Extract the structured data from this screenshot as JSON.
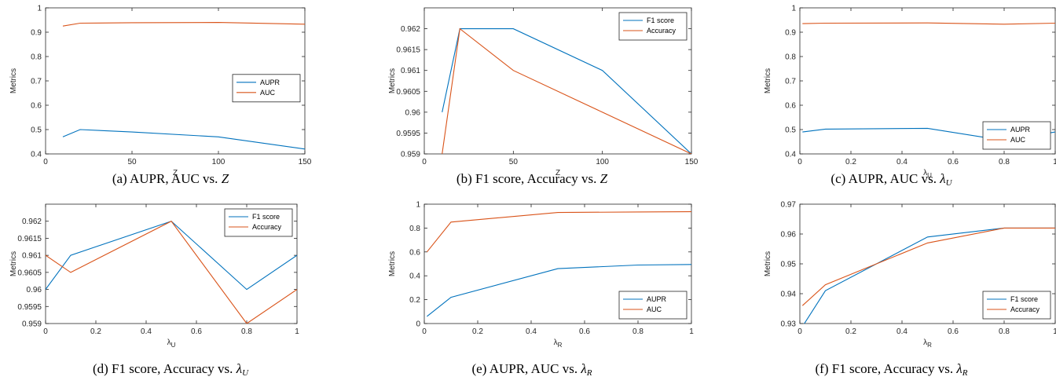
{
  "colors": {
    "series1": "#0072BD",
    "series2": "#D95319",
    "axis": "#262626"
  },
  "chart_data": [
    {
      "id": "a",
      "type": "line",
      "xlabel": "Z",
      "ylabel": "Metrics",
      "xlim": [
        0,
        150
      ],
      "ylim": [
        0.4,
        1.0
      ],
      "xticks": [
        0,
        50,
        100,
        150
      ],
      "xtick_labels": [
        "0",
        "50",
        "100",
        "150"
      ],
      "yticks": [
        0.4,
        0.5,
        0.6,
        0.7,
        0.8,
        0.9,
        1.0
      ],
      "ytick_labels": [
        "0.4",
        "0.5",
        "0.6",
        "0.7",
        "0.8",
        "0.9",
        "1"
      ],
      "legend": "right",
      "series": [
        {
          "name": "AUPR",
          "color": "#0072BD",
          "x": [
            10,
            20,
            50,
            100,
            150
          ],
          "y": [
            0.47,
            0.5,
            0.49,
            0.47,
            0.42
          ]
        },
        {
          "name": "AUC",
          "color": "#D95319",
          "x": [
            10,
            20,
            50,
            100,
            150
          ],
          "y": [
            0.925,
            0.937,
            0.939,
            0.94,
            0.933
          ]
        }
      ],
      "caption": {
        "prefix": "(a) AUPR, AUC vs.",
        "symbol": "Z",
        "sub": ""
      }
    },
    {
      "id": "b",
      "type": "line",
      "xlabel": "Z",
      "ylabel": "Metrics",
      "xlim": [
        0,
        150
      ],
      "ylim": [
        0.959,
        0.9625
      ],
      "xticks": [
        0,
        50,
        100,
        150
      ],
      "xtick_labels": [
        "0",
        "50",
        "100",
        "150"
      ],
      "yticks": [
        0.959,
        0.9595,
        0.96,
        0.9605,
        0.961,
        0.9615,
        0.962
      ],
      "ytick_labels": [
        "0.959",
        "0.9595",
        "0.96",
        "0.9605",
        "0.961",
        "0.9615",
        "0.962"
      ],
      "legend": "top-right",
      "series": [
        {
          "name": "F1 score",
          "color": "#0072BD",
          "x": [
            10,
            20,
            50,
            100,
            150
          ],
          "y": [
            0.96,
            0.962,
            0.962,
            0.961,
            0.959
          ]
        },
        {
          "name": "Accuracy",
          "color": "#D95319",
          "x": [
            10,
            20,
            50,
            100,
            150
          ],
          "y": [
            0.959,
            0.962,
            0.961,
            0.96,
            0.959
          ]
        }
      ],
      "caption": {
        "prefix": "(b) F1 score, Accuracy vs.",
        "symbol": "Z",
        "sub": ""
      }
    },
    {
      "id": "c",
      "type": "line",
      "xlabel": "λ",
      "xlabel_sub": "U",
      "ylabel": "Metrics",
      "xlim": [
        0,
        1
      ],
      "ylim": [
        0.4,
        1.0
      ],
      "xticks": [
        0,
        0.2,
        0.4,
        0.6,
        0.8,
        1
      ],
      "xtick_labels": [
        "0",
        "0.2",
        "0.4",
        "0.6",
        "0.8",
        "1"
      ],
      "yticks": [
        0.4,
        0.5,
        0.6,
        0.7,
        0.8,
        0.9,
        1.0
      ],
      "ytick_labels": [
        "0.4",
        "0.5",
        "0.6",
        "0.7",
        "0.8",
        "0.9",
        "1"
      ],
      "legend": "bottom-right",
      "series": [
        {
          "name": "AUPR",
          "color": "#0072BD",
          "x": [
            0.01,
            0.1,
            0.5,
            0.8,
            1.0
          ],
          "y": [
            0.49,
            0.502,
            0.505,
            0.455,
            0.49
          ]
        },
        {
          "name": "AUC",
          "color": "#D95319",
          "x": [
            0.01,
            0.1,
            0.5,
            0.8,
            1.0
          ],
          "y": [
            0.935,
            0.937,
            0.938,
            0.933,
            0.937
          ]
        }
      ],
      "caption": {
        "prefix": "(c) AUPR, AUC vs.",
        "symbol": "λ",
        "sub": "U"
      }
    },
    {
      "id": "d",
      "type": "line",
      "xlabel": "λ",
      "xlabel_sub": "U",
      "ylabel": "Metrics",
      "xlim": [
        0,
        1
      ],
      "ylim": [
        0.959,
        0.9625
      ],
      "xticks": [
        0,
        0.2,
        0.4,
        0.6,
        0.8,
        1
      ],
      "xtick_labels": [
        "0",
        "0.2",
        "0.4",
        "0.6",
        "0.8",
        "1"
      ],
      "yticks": [
        0.959,
        0.9595,
        0.96,
        0.9605,
        0.961,
        0.9615,
        0.962
      ],
      "ytick_labels": [
        "0.959",
        "0.9595",
        "0.96",
        "0.9605",
        "0.961",
        "0.9615",
        "0.962"
      ],
      "legend": "top-right",
      "series": [
        {
          "name": "F1 score",
          "color": "#0072BD",
          "x": [
            0,
            0.1,
            0.5,
            0.8,
            1.0
          ],
          "y": [
            0.96,
            0.961,
            0.962,
            0.96,
            0.961
          ]
        },
        {
          "name": "Accuracy",
          "color": "#D95319",
          "x": [
            0,
            0.1,
            0.5,
            0.8,
            1.0
          ],
          "y": [
            0.961,
            0.9605,
            0.962,
            0.959,
            0.96
          ]
        }
      ],
      "caption": {
        "prefix": "(d) F1 score, Accuracy vs.",
        "symbol": "λ",
        "sub": "U"
      }
    },
    {
      "id": "e",
      "type": "line",
      "xlabel": "λ",
      "xlabel_sub": "R",
      "ylabel": "Metrics",
      "xlim": [
        0,
        1
      ],
      "ylim": [
        0,
        1
      ],
      "xticks": [
        0,
        0.2,
        0.4,
        0.6,
        0.8,
        1
      ],
      "xtick_labels": [
        "0",
        "0.2",
        "0.4",
        "0.6",
        "0.8",
        "1"
      ],
      "yticks": [
        0,
        0.2,
        0.4,
        0.6,
        0.8,
        1
      ],
      "ytick_labels": [
        "0",
        "0.2",
        "0.4",
        "0.6",
        "0.8",
        "1"
      ],
      "legend": "bottom-right",
      "series": [
        {
          "name": "AUPR",
          "color": "#0072BD",
          "x": [
            0.01,
            0.1,
            0.5,
            0.8,
            1.0
          ],
          "y": [
            0.06,
            0.22,
            0.46,
            0.49,
            0.495
          ]
        },
        {
          "name": "AUC",
          "color": "#D95319",
          "x": [
            0.01,
            0.1,
            0.5,
            0.8,
            1.0
          ],
          "y": [
            0.6,
            0.85,
            0.93,
            0.935,
            0.937
          ]
        }
      ],
      "caption": {
        "prefix": "(e) AUPR, AUC vs.",
        "symbol": "λ",
        "sub": "R"
      }
    },
    {
      "id": "f",
      "type": "line",
      "xlabel": "λ",
      "xlabel_sub": "R",
      "ylabel": "Metrics",
      "xlim": [
        0,
        1
      ],
      "ylim": [
        0.93,
        0.97
      ],
      "xticks": [
        0,
        0.2,
        0.4,
        0.6,
        0.8,
        1
      ],
      "xtick_labels": [
        "0",
        "0.2",
        "0.4",
        "0.6",
        "0.8",
        "1"
      ],
      "yticks": [
        0.93,
        0.94,
        0.95,
        0.96,
        0.97
      ],
      "ytick_labels": [
        "0.93",
        "0.94",
        "0.95",
        "0.96",
        "0.97"
      ],
      "legend": "bottom-right",
      "series": [
        {
          "name": "F1 score",
          "color": "#0072BD",
          "x": [
            0.01,
            0.1,
            0.5,
            0.8,
            1.0
          ],
          "y": [
            0.929,
            0.941,
            0.959,
            0.962,
            0.962
          ]
        },
        {
          "name": "Accuracy",
          "color": "#D95319",
          "x": [
            0.01,
            0.1,
            0.5,
            0.8,
            1.0
          ],
          "y": [
            0.936,
            0.943,
            0.957,
            0.962,
            0.962
          ]
        }
      ],
      "caption": {
        "prefix": "(f) F1 score, Accuracy vs.",
        "symbol": "λ",
        "sub": "R"
      }
    }
  ]
}
